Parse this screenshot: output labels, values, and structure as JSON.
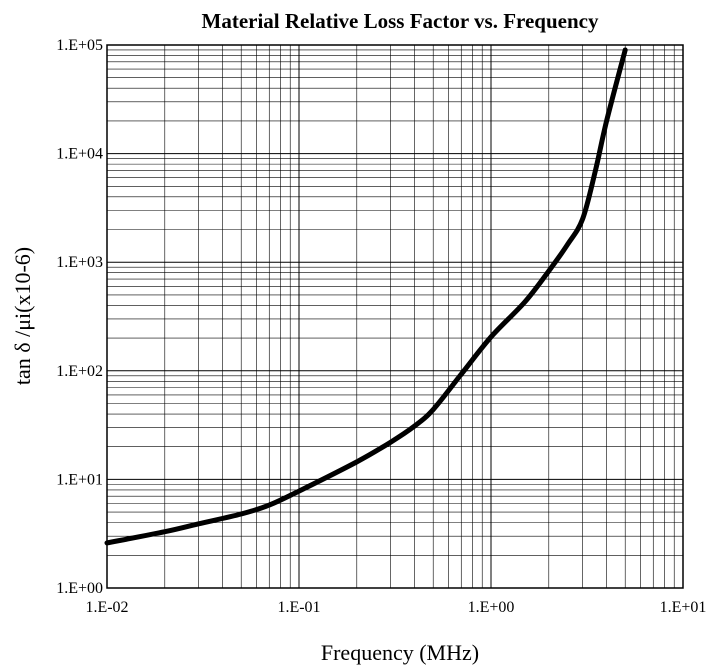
{
  "chart_data": {
    "type": "line",
    "title": "Material Relative Loss Factor vs. Frequency",
    "xlabel": "Frequency (MHz)",
    "ylabel": "tan δ /μi(x10-6)",
    "x_scale": "log",
    "y_scale": "log",
    "xlim": [
      0.01,
      10
    ],
    "ylim": [
      1,
      100000
    ],
    "grid": true,
    "x_ticks": [
      0.01,
      0.1,
      1,
      10
    ],
    "x_tick_labels": [
      "1.E-02",
      "1.E-01",
      "1.E+00",
      "1.E+01"
    ],
    "y_ticks": [
      1,
      10,
      100,
      1000,
      10000,
      100000
    ],
    "y_tick_labels": [
      "1.E+00",
      "1.E+01",
      "1.E+02",
      "1.E+03",
      "1.E+04",
      "1.E+05"
    ],
    "series": [
      {
        "x": [
          0.01,
          0.02,
          0.03,
          0.05,
          0.07,
          0.1,
          0.2,
          0.3,
          0.4,
          0.5,
          0.7,
          1.0,
          1.5,
          2.0,
          2.5,
          3.0,
          3.5,
          4.0,
          5.0
        ],
        "y": [
          2.6,
          3.3,
          3.9,
          4.8,
          5.8,
          7.8,
          14.5,
          22,
          31,
          44,
          93,
          205,
          430,
          830,
          1450,
          2500,
          7000,
          20000,
          90000
        ]
      }
    ]
  }
}
